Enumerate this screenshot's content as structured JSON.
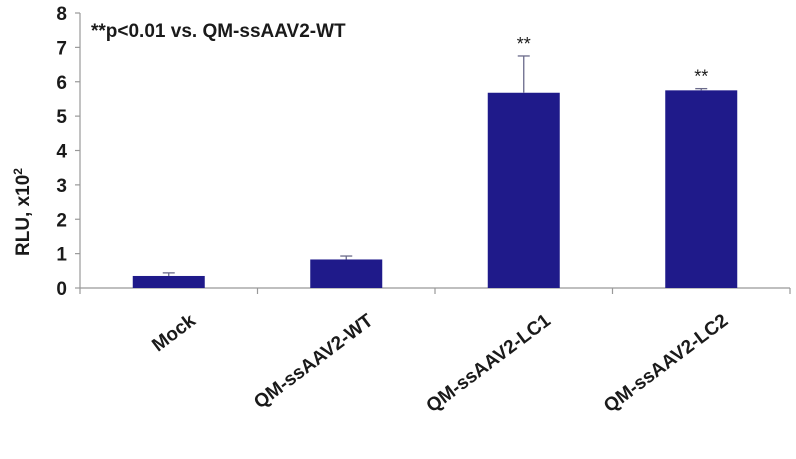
{
  "chart_data": {
    "type": "bar",
    "categories": [
      "Mock",
      "QM-ssAAV2-WT",
      "QM-ssAAV2-LC1",
      "QM-ssAAV2-LC2"
    ],
    "values": [
      0.35,
      0.83,
      5.68,
      5.75
    ],
    "errors": [
      0.09,
      0.1,
      1.07,
      0.05
    ],
    "significance": [
      "",
      "",
      "**",
      "**"
    ],
    "annotation": "**p<0.01 vs. QM-ssAAV2-WT",
    "ylabel_main": "RLU, x10",
    "ylabel_exp": "2",
    "xlabel": "",
    "ylim": [
      0,
      8
    ],
    "yticks": [
      "0",
      "1",
      "2",
      "3",
      "4",
      "5",
      "6",
      "7",
      "8"
    ],
    "grid": false,
    "colors": {
      "bar": "#1f1a8a",
      "axis": "#999999",
      "text": "#1a1a1a"
    }
  }
}
